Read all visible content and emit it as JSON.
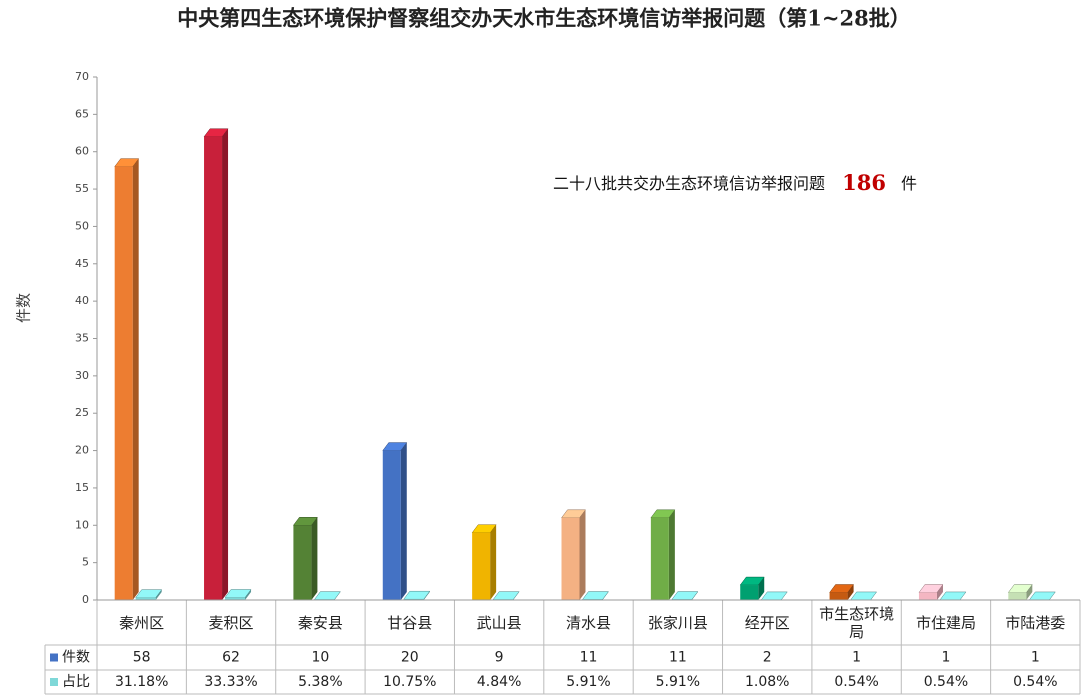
{
  "chart_data": {
    "type": "bar3d",
    "title": "中央第四生态环境保护督察组交办天水市生态环境信访举报问题（第1~28批）",
    "annotation": {
      "text": "二十八批共交办生态环境信访举报问题",
      "total": 186,
      "unit": "件"
    },
    "ylabel": "件数",
    "ylim": [
      0,
      70
    ],
    "yticks": [
      0,
      5,
      10,
      15,
      20,
      25,
      30,
      35,
      40,
      45,
      50,
      55,
      60,
      65,
      70
    ],
    "categories": [
      "秦州区",
      "麦积区",
      "秦安县",
      "甘谷县",
      "武山县",
      "清水县",
      "张家川县",
      "经开区",
      "市生态环境局",
      "市住建局",
      "市陆港委"
    ],
    "series": [
      {
        "name": "件数",
        "color": "#4472c4",
        "values": [
          58,
          62,
          10,
          20,
          9,
          11,
          11,
          2,
          1,
          1,
          1
        ],
        "colors": [
          "#ed7d31",
          "#c8203a",
          "#548235",
          "#4472c4",
          "#f0b400",
          "#f4b183",
          "#70ad47",
          "#00a070",
          "#c55a11",
          "#f4b6c2",
          "#c5e0b4"
        ]
      },
      {
        "name": "占比",
        "color": "#7fd8d8",
        "values": [
          0.3118,
          0.3333,
          0.0538,
          0.1075,
          0.0484,
          0.0591,
          0.0591,
          0.0108,
          0.0054,
          0.0054,
          0.0054
        ],
        "value_labels": [
          "31.18%",
          "33.33%",
          "5.38%",
          "10.75%",
          "4.84%",
          "5.91%",
          "5.91%",
          "1.08%",
          "0.54%",
          "0.54%",
          "0.54%"
        ]
      }
    ]
  }
}
